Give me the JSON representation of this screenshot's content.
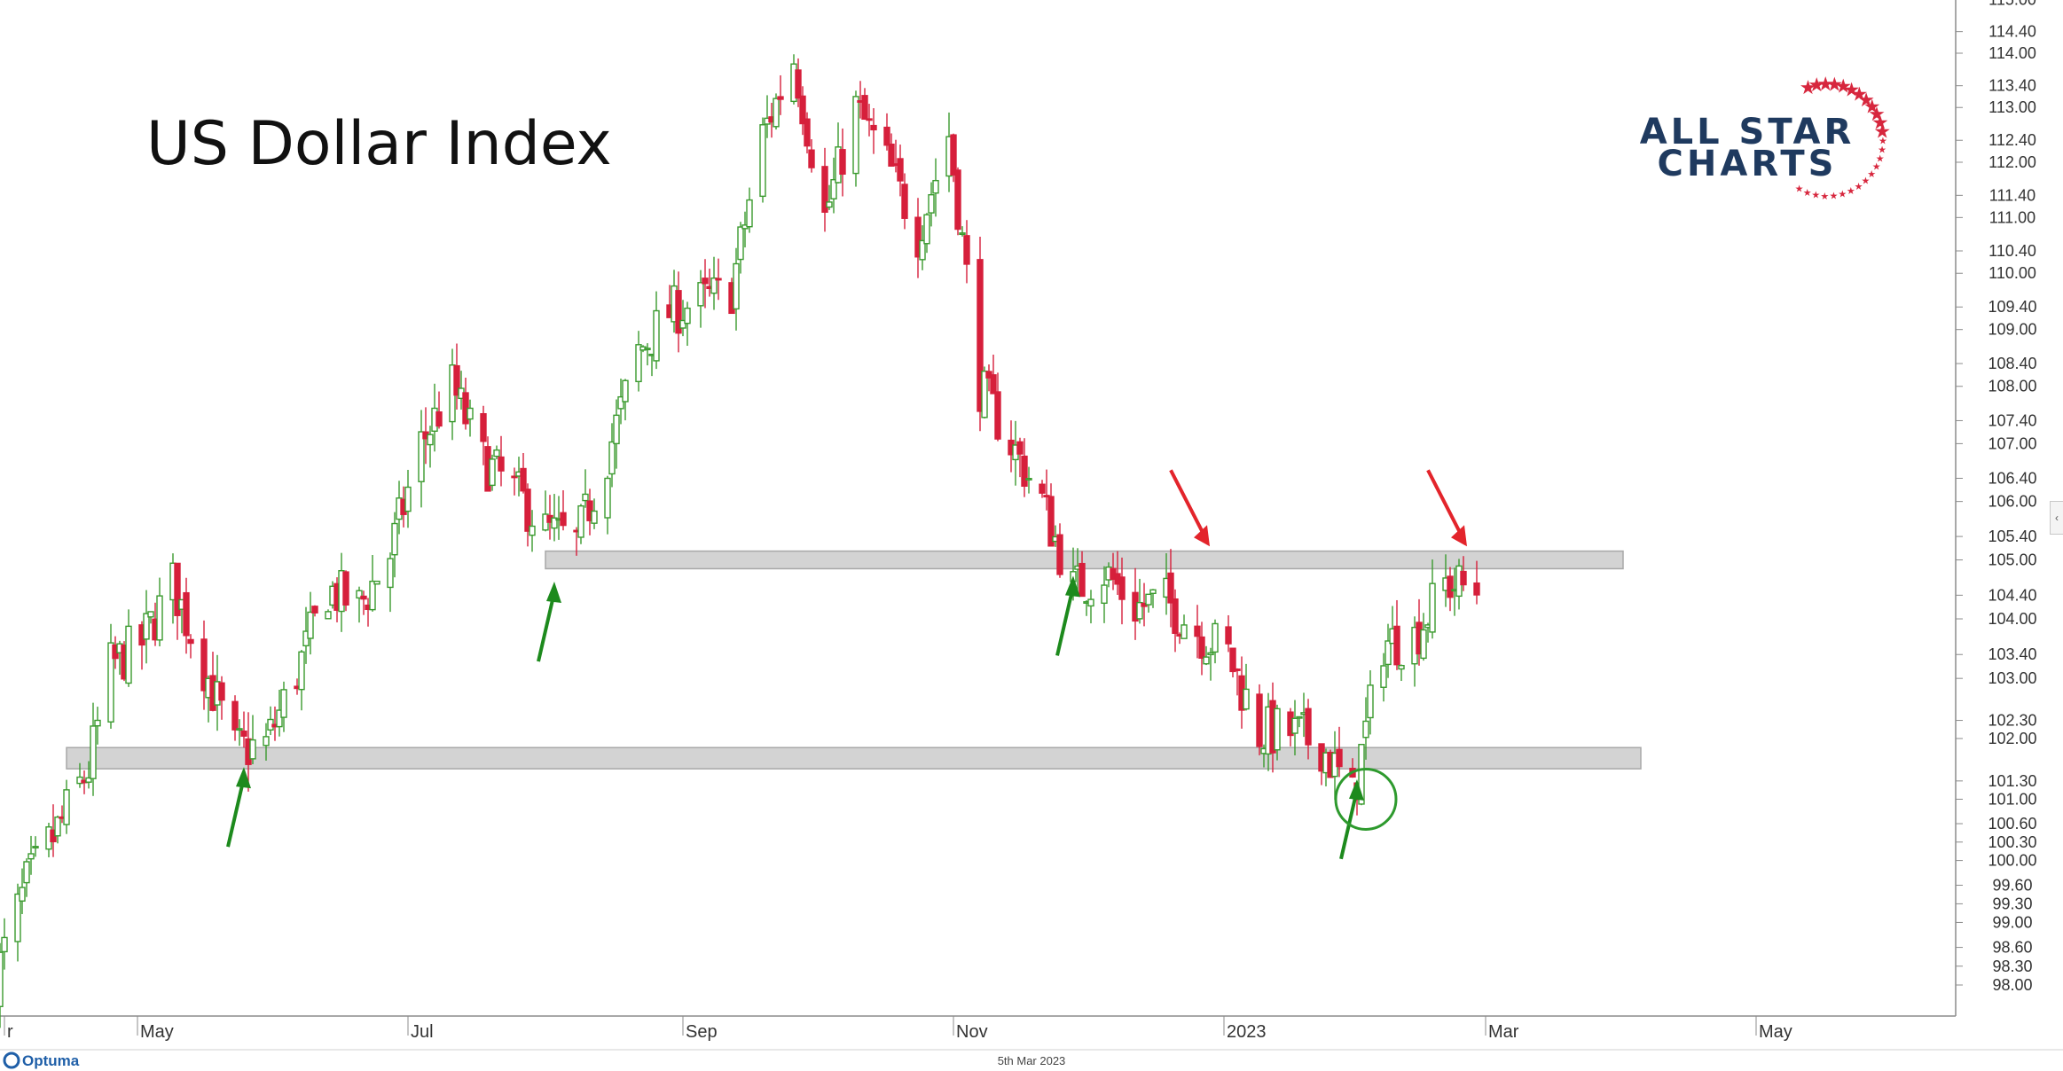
{
  "chart_data": {
    "type": "candlestick",
    "title": "US Dollar Index",
    "brand": {
      "line1": "ALL STAR",
      "line2": "CHARTS",
      "star_color": "#d7263d",
      "text_color": "#1f3a5f"
    },
    "x_labels": [
      "r",
      "May",
      "Jul",
      "Sep",
      "Nov",
      "2023",
      "Mar",
      "May"
    ],
    "y_ticks": [
      98.0,
      98.3,
      98.6,
      99.0,
      99.3,
      99.6,
      100.0,
      100.3,
      100.6,
      101.0,
      101.3,
      102.0,
      102.3,
      103.0,
      103.4,
      104.0,
      104.4,
      105.0,
      105.4,
      106.0,
      106.4,
      107.0,
      107.4,
      108.0,
      108.4,
      109.0,
      109.4,
      110.0,
      110.4,
      111.0,
      111.4,
      112.0,
      112.4,
      113.0,
      113.4,
      114.0,
      114.4,
      115.0
    ],
    "y_range": [
      97.0,
      115.0
    ],
    "footer_date": "5th Mar 2023",
    "footer_brand": "Optuma",
    "colors": {
      "up": "#3a9a2e",
      "down": "#d61f3b",
      "band_fill": "#d3d3d3",
      "band_stroke": "#a8a8a8",
      "arrow_up": "#1d8a1d",
      "arrow_down": "#e3242b",
      "circle": "#2e9a2e"
    },
    "support_resistance_zones": [
      {
        "name": "resistance-zone",
        "start": "2022-08-01",
        "end": "2023-04-01",
        "low": 104.85,
        "high": 105.15
      },
      {
        "name": "support-zone",
        "start": "2022-04-15",
        "end": "2023-04-05",
        "low": 101.5,
        "high": 101.85
      }
    ],
    "annotations": [
      {
        "type": "arrow-up",
        "date": "2022-05-25",
        "value": 101.5
      },
      {
        "type": "arrow-up",
        "date": "2022-08-03",
        "value": 104.6
      },
      {
        "type": "arrow-up",
        "date": "2022-11-28",
        "value": 104.7
      },
      {
        "type": "arrow-up",
        "date": "2023-01-31",
        "value": 101.3
      },
      {
        "type": "arrow-down",
        "date": "2022-12-28",
        "value": 105.2
      },
      {
        "type": "arrow-down",
        "date": "2023-02-24",
        "value": 105.2
      },
      {
        "type": "circle",
        "date": "2023-02-02",
        "value": 101.0
      }
    ],
    "closes": [
      [
        "2022-03-30",
        98.1
      ],
      [
        "2022-04-06",
        99.6
      ],
      [
        "2022-04-13",
        100.5
      ],
      [
        "2022-04-20",
        101.5
      ],
      [
        "2022-04-25",
        103.2
      ],
      [
        "2022-05-02",
        103.6
      ],
      [
        "2022-05-09",
        104.6
      ],
      [
        "2022-05-16",
        103.2
      ],
      [
        "2022-05-23",
        101.8
      ],
      [
        "2022-05-30",
        101.9
      ],
      [
        "2022-06-06",
        103.1
      ],
      [
        "2022-06-13",
        104.5
      ],
      [
        "2022-06-20",
        104.2
      ],
      [
        "2022-06-27",
        105.1
      ],
      [
        "2022-07-04",
        107.0
      ],
      [
        "2022-07-11",
        108.0
      ],
      [
        "2022-07-18",
        106.7
      ],
      [
        "2022-07-25",
        106.2
      ],
      [
        "2022-08-01",
        105.5
      ],
      [
        "2022-08-08",
        105.3
      ],
      [
        "2022-08-15",
        106.8
      ],
      [
        "2022-08-22",
        108.6
      ],
      [
        "2022-08-29",
        109.3
      ],
      [
        "2022-09-05",
        109.5
      ],
      [
        "2022-09-12",
        109.7
      ],
      [
        "2022-09-19",
        112.5
      ],
      [
        "2022-09-26",
        113.9
      ],
      [
        "2022-10-03",
        111.0
      ],
      [
        "2022-10-10",
        113.0
      ],
      [
        "2022-10-17",
        112.0
      ],
      [
        "2022-10-24",
        110.7
      ],
      [
        "2022-10-31",
        112.5
      ],
      [
        "2022-11-07",
        108.0
      ],
      [
        "2022-11-14",
        107.0
      ],
      [
        "2022-11-21",
        106.0
      ],
      [
        "2022-11-28",
        104.5
      ],
      [
        "2022-12-05",
        104.8
      ],
      [
        "2022-12-12",
        104.2
      ],
      [
        "2022-12-19",
        104.3
      ],
      [
        "2022-12-26",
        103.8
      ],
      [
        "2023-01-02",
        103.4
      ],
      [
        "2023-01-09",
        102.1
      ],
      [
        "2023-01-16",
        102.1
      ],
      [
        "2023-01-23",
        101.9
      ],
      [
        "2023-01-30",
        101.0
      ],
      [
        "2023-02-06",
        103.6
      ],
      [
        "2023-02-13",
        103.7
      ],
      [
        "2023-02-20",
        104.6
      ],
      [
        "2023-02-27",
        104.5
      ]
    ]
  }
}
